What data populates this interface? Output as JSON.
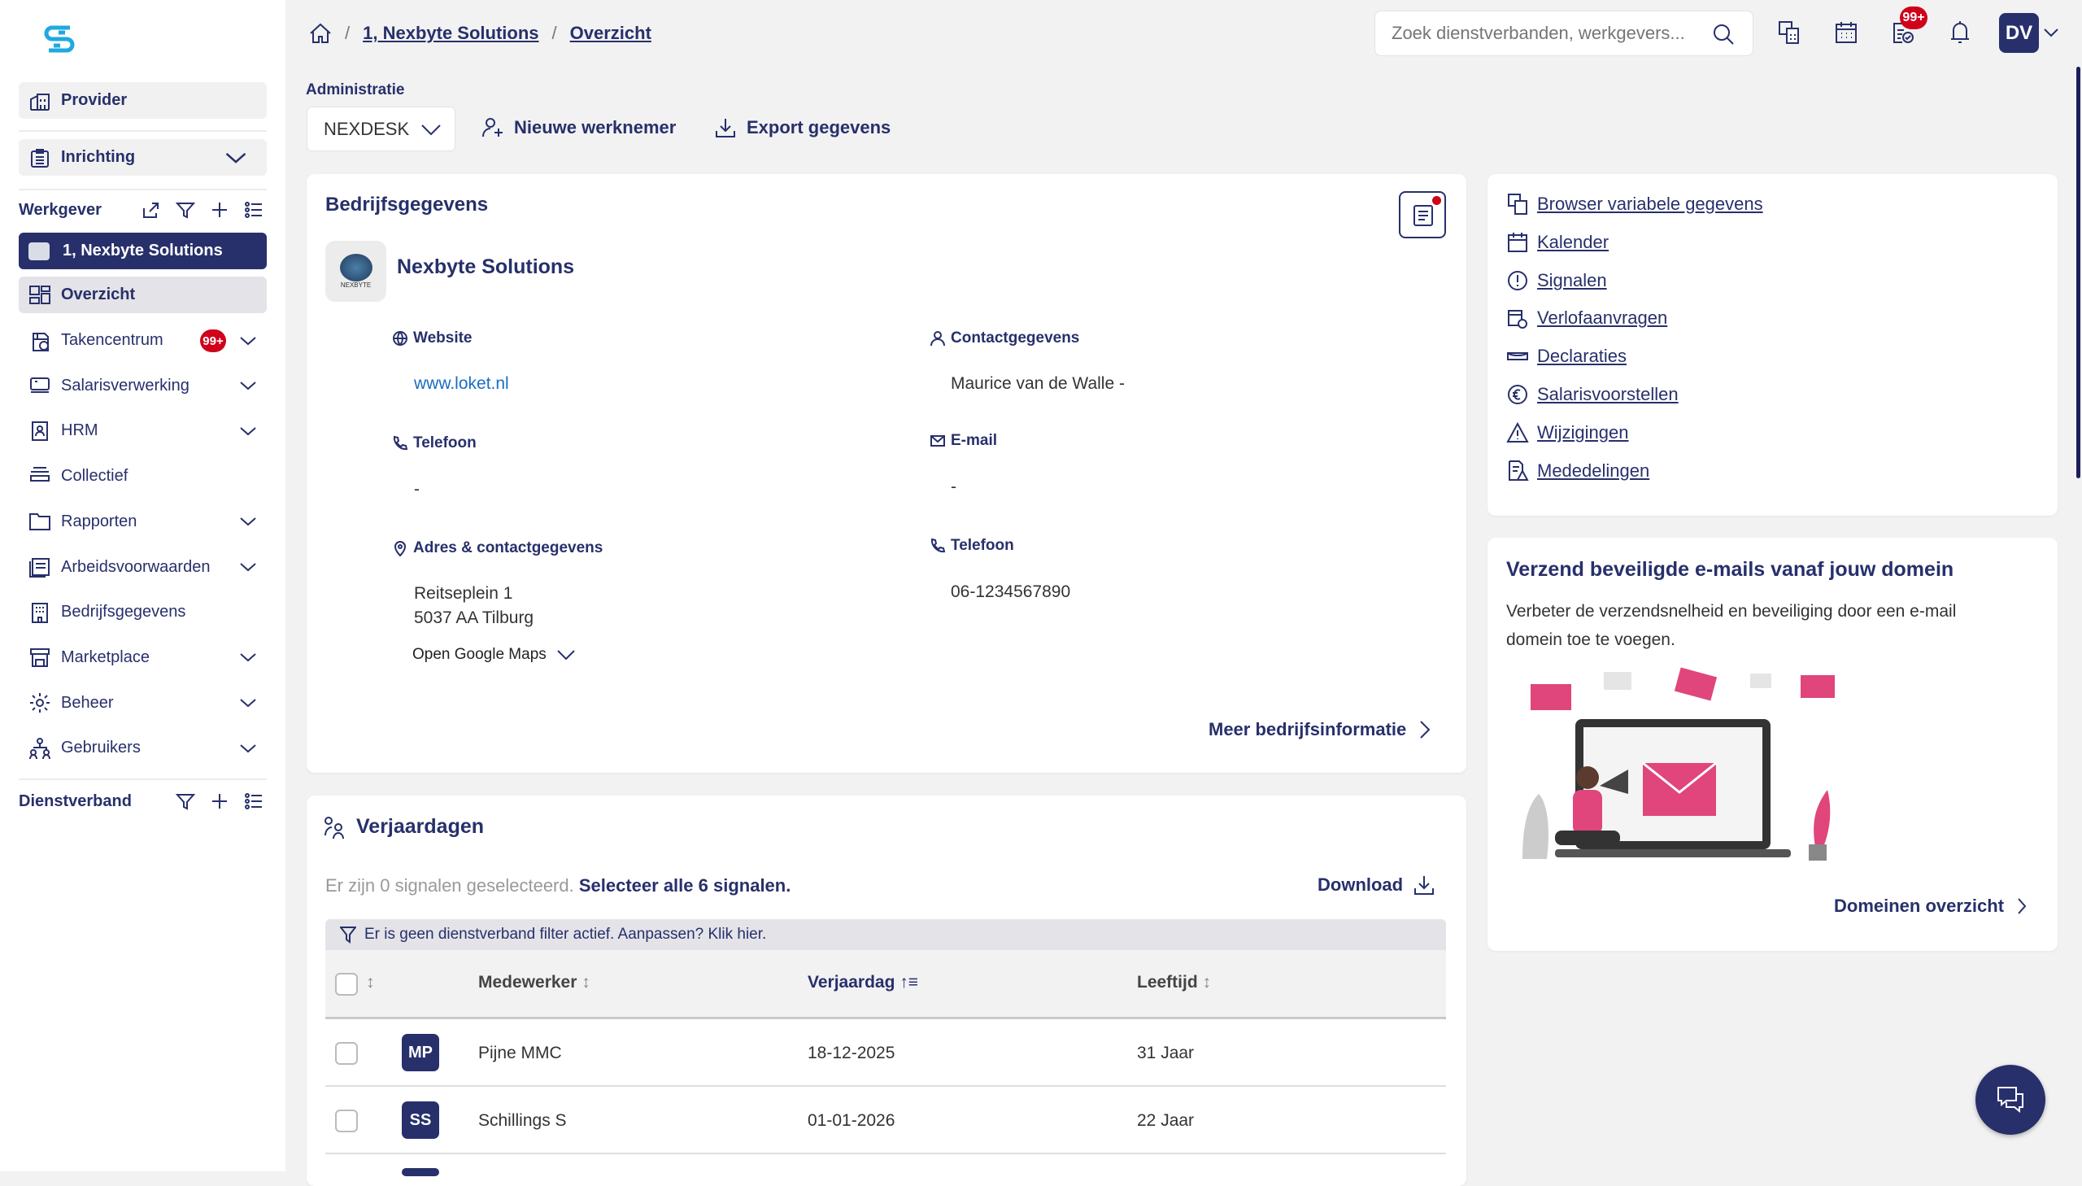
{
  "sidebar": {
    "provider": "Provider",
    "inrichting": "Inrichting",
    "werkgever": "Werkgever",
    "selected_employer": "1, Nexbyte Solutions",
    "overzicht": "Overzicht",
    "items": [
      {
        "label": "Takencentrum",
        "badge": "99+"
      },
      {
        "label": "Salarisverwerking"
      },
      {
        "label": "HRM"
      },
      {
        "label": "Collectief"
      },
      {
        "label": "Rapporten"
      },
      {
        "label": "Arbeidsvoorwaarden"
      },
      {
        "label": "Bedrijfsgegevens"
      },
      {
        "label": "Marketplace"
      },
      {
        "label": "Beheer"
      },
      {
        "label": "Gebruikers"
      }
    ],
    "dienstverband": "Dienstverband"
  },
  "header": {
    "breadcrumb": [
      "1, Nexbyte Solutions",
      "Overzicht"
    ],
    "search_placeholder": "Zoek dienstverbanden, werkgevers...",
    "tasks_badge": "99+",
    "avatar": "DV"
  },
  "toolbar": {
    "administratie_label": "Administratie",
    "administratie_value": "NEXDESK",
    "new_employee": "Nieuwe werknemer",
    "export": "Export gegevens"
  },
  "company": {
    "title": "Bedrijfsgegevens",
    "name": "Nexbyte Solutions",
    "logo_text": "NEXBYTE",
    "website_label": "Website",
    "website": "www.loket.nl",
    "contact_label": "Contactgegevens",
    "contact": "Maurice van de Walle -",
    "phone_label": "Telefoon",
    "phone": "-",
    "email_label": "E-mail",
    "email": "-",
    "address_label": "Adres & contactgegevens",
    "address1": "Reitseplein 1",
    "address2": "5037 AA Tilburg",
    "maps": "Open Google Maps",
    "phone2_label": "Telefoon",
    "phone2": "06-1234567890",
    "more": "Meer bedrijfsinformatie"
  },
  "quicklinks": [
    "Browser variabele gegevens",
    "Kalender",
    "Signalen",
    "Verlofaanvragen",
    "Declaraties",
    "Salarisvoorstellen",
    "Wijzigingen",
    "Mededelingen"
  ],
  "promo": {
    "title": "Verzend beveiligde e-mails vanaf jouw domein",
    "text": "Verbeter de verzendsnelheid en beveiliging door een e-mail domein toe te voegen.",
    "link": "Domeinen overzicht"
  },
  "birthdays": {
    "title": "Verjaardagen",
    "selected_prefix": "Er zijn 0 signalen geselecteerd.",
    "select_all": "Selecteer alle 6 signalen.",
    "download": "Download",
    "filter_notice": "Er is geen dienstverband filter actief. Aanpassen? Klik hier.",
    "columns": [
      "Medewerker",
      "Verjaardag",
      "Leeftijd"
    ],
    "rows": [
      {
        "initials": "MP",
        "name": "Pijne MMC",
        "date": "18-12-2025",
        "age": "31 Jaar"
      },
      {
        "initials": "SS",
        "name": "Schillings S",
        "date": "01-01-2026",
        "age": "22 Jaar"
      }
    ]
  },
  "colors": {
    "navy": "#27306b",
    "badge": "#d0021b",
    "logo": "#1fa9e1"
  }
}
